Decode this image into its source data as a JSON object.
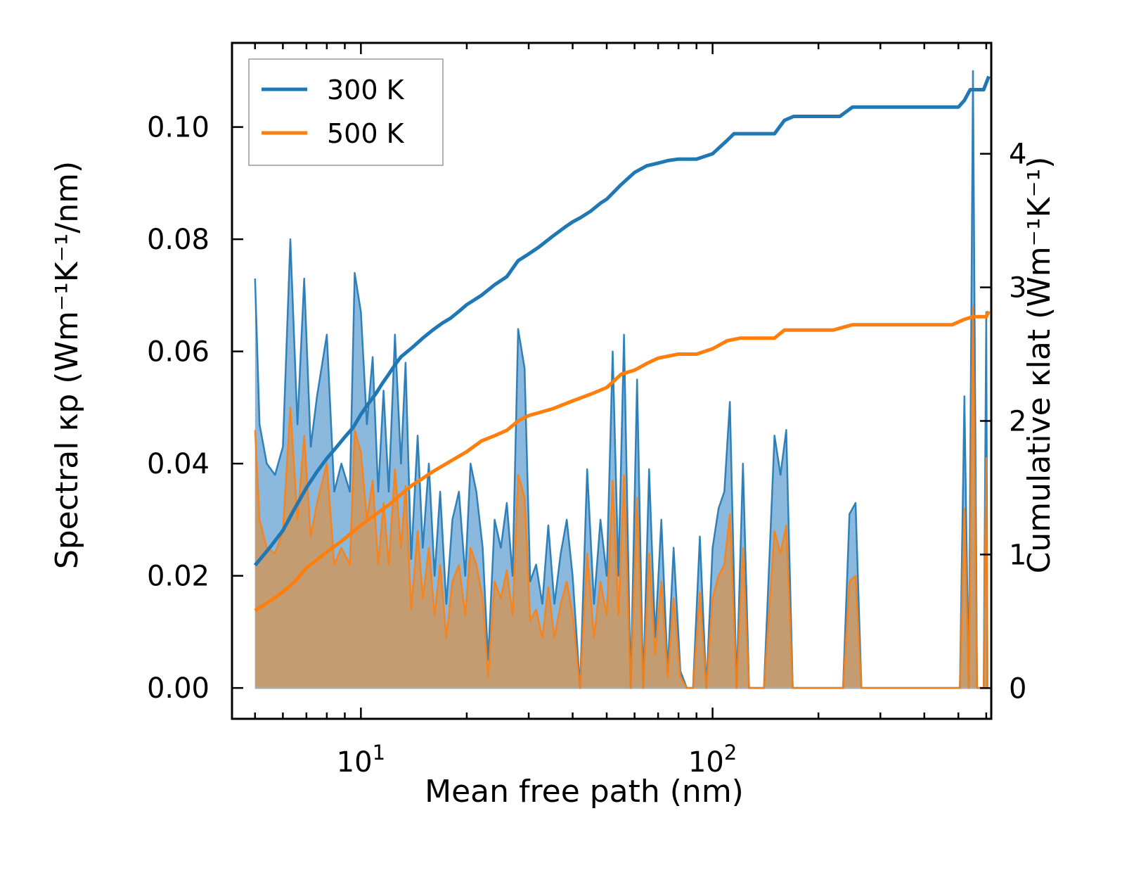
{
  "chart_data": {
    "type": "line",
    "x_scale": "log",
    "xlabel": "Mean free path (nm)",
    "ylabel_left": "Spectral κp (Wm⁻¹K⁻¹/nm)",
    "ylabel_right": "Cumulative κlat (Wm⁻¹K⁻¹)",
    "xlim": [
      4.3,
      620
    ],
    "ylim_left": [
      -0.0055,
      0.115
    ],
    "ylim_right": [
      -0.23,
      4.83
    ],
    "x_ticks": [
      {
        "value": 10,
        "base": "10",
        "exp": "1"
      },
      {
        "value": 100,
        "base": "10",
        "exp": "2"
      }
    ],
    "y_ticks_left": [
      "0.00",
      "0.02",
      "0.04",
      "0.06",
      "0.08",
      "0.10"
    ],
    "y_ticks_right": [
      "0",
      "1",
      "2",
      "3",
      "4"
    ],
    "legend": {
      "position": "top-left",
      "entries": [
        "300 K",
        "500 K"
      ]
    },
    "colors": {
      "300 K": "#1f77b4",
      "500 K": "#ff7f0e",
      "fill_300": "#7eb1d9",
      "fill_500": "#c69a6c"
    },
    "series": [
      {
        "name": "300 K",
        "axis": "left",
        "kind": "spectral",
        "points": [
          [
            5.0,
            0.073
          ],
          [
            5.15,
            0.047
          ],
          [
            5.4,
            0.04
          ],
          [
            5.7,
            0.038
          ],
          [
            6.0,
            0.043
          ],
          [
            6.3,
            0.08
          ],
          [
            6.6,
            0.047
          ],
          [
            6.9,
            0.073
          ],
          [
            7.2,
            0.043
          ],
          [
            7.5,
            0.052
          ],
          [
            8.0,
            0.063
          ],
          [
            8.4,
            0.035
          ],
          [
            8.8,
            0.04
          ],
          [
            9.3,
            0.035
          ],
          [
            9.6,
            0.074
          ],
          [
            10.0,
            0.067
          ],
          [
            10.4,
            0.047
          ],
          [
            10.8,
            0.059
          ],
          [
            11.2,
            0.035
          ],
          [
            11.6,
            0.053
          ],
          [
            12.0,
            0.035
          ],
          [
            12.5,
            0.063
          ],
          [
            13.0,
            0.04
          ],
          [
            13.4,
            0.058
          ],
          [
            13.9,
            0.023
          ],
          [
            14.5,
            0.045
          ],
          [
            15.0,
            0.025
          ],
          [
            15.6,
            0.04
          ],
          [
            16.2,
            0.02
          ],
          [
            16.8,
            0.035
          ],
          [
            17.5,
            0.015
          ],
          [
            18.2,
            0.03
          ],
          [
            19.0,
            0.035
          ],
          [
            19.8,
            0.02
          ],
          [
            20.5,
            0.04
          ],
          [
            21.3,
            0.035
          ],
          [
            22.2,
            0.025
          ],
          [
            23.0,
            0.005
          ],
          [
            24.0,
            0.03
          ],
          [
            25.0,
            0.025
          ],
          [
            26.0,
            0.033
          ],
          [
            27.0,
            0.02
          ],
          [
            28.0,
            0.064
          ],
          [
            29.2,
            0.057
          ],
          [
            30.3,
            0.019
          ],
          [
            31.5,
            0.022
          ],
          [
            32.8,
            0.015
          ],
          [
            34.1,
            0.029
          ],
          [
            35.5,
            0.015
          ],
          [
            37.0,
            0.024
          ],
          [
            38.5,
            0.03
          ],
          [
            40.0,
            0.02
          ],
          [
            42.0,
            0.0
          ],
          [
            44.0,
            0.039
          ],
          [
            46.0,
            0.015
          ],
          [
            48.0,
            0.03
          ],
          [
            50.0,
            0.02
          ],
          [
            52.0,
            0.06
          ],
          [
            54.0,
            0.02
          ],
          [
            56.0,
            0.063
          ],
          [
            58.5,
            0.0
          ],
          [
            61.0,
            0.055
          ],
          [
            63.5,
            0.0
          ],
          [
            66.0,
            0.039
          ],
          [
            68.7,
            0.009
          ],
          [
            71.5,
            0.03
          ],
          [
            74.5,
            0.003
          ],
          [
            77.5,
            0.025
          ],
          [
            81.0,
            0.003
          ],
          [
            84.5,
            0.0
          ],
          [
            88.0,
            0.0
          ],
          [
            92.0,
            0.027
          ],
          [
            96.0,
            0.0
          ],
          [
            100.0,
            0.025
          ],
          [
            104.0,
            0.032
          ],
          [
            108.0,
            0.035
          ],
          [
            112.0,
            0.051
          ],
          [
            117.0,
            0.0
          ],
          [
            122.0,
            0.04
          ],
          [
            127.0,
            0.0
          ],
          [
            140.0,
            0.0
          ],
          [
            150.0,
            0.045
          ],
          [
            156.0,
            0.038
          ],
          [
            162.0,
            0.046
          ],
          [
            169.0,
            0.0
          ],
          [
            235.0,
            0.0
          ],
          [
            245.0,
            0.031
          ],
          [
            255.0,
            0.033
          ],
          [
            265.0,
            0.0
          ],
          [
            505.0,
            0.0
          ],
          [
            520.0,
            0.052
          ],
          [
            535.0,
            0.0
          ],
          [
            550.0,
            0.11
          ],
          [
            565.0,
            0.0
          ],
          [
            590.0,
            0.0
          ],
          [
            600.0,
            0.067
          ],
          [
            605.0,
            0.0
          ]
        ]
      },
      {
        "name": "500 K",
        "axis": "left",
        "kind": "spectral",
        "points": [
          [
            5.0,
            0.046
          ],
          [
            5.15,
            0.03
          ],
          [
            5.4,
            0.025
          ],
          [
            5.7,
            0.024
          ],
          [
            6.0,
            0.028
          ],
          [
            6.3,
            0.05
          ],
          [
            6.6,
            0.03
          ],
          [
            6.9,
            0.045
          ],
          [
            7.2,
            0.027
          ],
          [
            7.5,
            0.033
          ],
          [
            8.0,
            0.04
          ],
          [
            8.4,
            0.022
          ],
          [
            8.8,
            0.025
          ],
          [
            9.3,
            0.022
          ],
          [
            9.6,
            0.046
          ],
          [
            10.0,
            0.042
          ],
          [
            10.4,
            0.03
          ],
          [
            10.8,
            0.037
          ],
          [
            11.2,
            0.022
          ],
          [
            11.6,
            0.033
          ],
          [
            12.0,
            0.022
          ],
          [
            12.5,
            0.039
          ],
          [
            13.0,
            0.025
          ],
          [
            13.4,
            0.036
          ],
          [
            13.9,
            0.014
          ],
          [
            14.5,
            0.028
          ],
          [
            15.0,
            0.016
          ],
          [
            15.6,
            0.025
          ],
          [
            16.2,
            0.013
          ],
          [
            16.8,
            0.022
          ],
          [
            17.5,
            0.009
          ],
          [
            18.2,
            0.019
          ],
          [
            19.0,
            0.022
          ],
          [
            19.8,
            0.013
          ],
          [
            20.5,
            0.025
          ],
          [
            21.3,
            0.022
          ],
          [
            22.2,
            0.016
          ],
          [
            23.0,
            0.002
          ],
          [
            24.0,
            0.019
          ],
          [
            25.0,
            0.016
          ],
          [
            26.0,
            0.021
          ],
          [
            27.0,
            0.013
          ],
          [
            28.0,
            0.038
          ],
          [
            29.2,
            0.034
          ],
          [
            30.3,
            0.012
          ],
          [
            31.5,
            0.014
          ],
          [
            32.8,
            0.009
          ],
          [
            34.1,
            0.018
          ],
          [
            35.5,
            0.009
          ],
          [
            37.0,
            0.015
          ],
          [
            38.5,
            0.019
          ],
          [
            40.0,
            0.013
          ],
          [
            42.0,
            0.0
          ],
          [
            44.0,
            0.024
          ],
          [
            46.0,
            0.009
          ],
          [
            48.0,
            0.019
          ],
          [
            50.0,
            0.013
          ],
          [
            52.0,
            0.037
          ],
          [
            54.0,
            0.013
          ],
          [
            56.0,
            0.038
          ],
          [
            58.5,
            0.0
          ],
          [
            61.0,
            0.034
          ],
          [
            63.5,
            0.0
          ],
          [
            66.0,
            0.024
          ],
          [
            68.7,
            0.006
          ],
          [
            71.5,
            0.019
          ],
          [
            74.5,
            0.002
          ],
          [
            77.5,
            0.016
          ],
          [
            81.0,
            0.002
          ],
          [
            84.5,
            0.0
          ],
          [
            88.0,
            0.0
          ],
          [
            92.0,
            0.017
          ],
          [
            96.0,
            0.0
          ],
          [
            100.0,
            0.016
          ],
          [
            104.0,
            0.02
          ],
          [
            108.0,
            0.022
          ],
          [
            112.0,
            0.031
          ],
          [
            117.0,
            0.0
          ],
          [
            122.0,
            0.025
          ],
          [
            127.0,
            0.0
          ],
          [
            140.0,
            0.0
          ],
          [
            150.0,
            0.028
          ],
          [
            156.0,
            0.024
          ],
          [
            162.0,
            0.029
          ],
          [
            169.0,
            0.0
          ],
          [
            235.0,
            0.0
          ],
          [
            245.0,
            0.019
          ],
          [
            255.0,
            0.02
          ],
          [
            265.0,
            0.0
          ],
          [
            505.0,
            0.0
          ],
          [
            520.0,
            0.032
          ],
          [
            535.0,
            0.0
          ],
          [
            550.0,
            0.068
          ],
          [
            565.0,
            0.0
          ],
          [
            590.0,
            0.0
          ],
          [
            600.0,
            0.041
          ],
          [
            605.0,
            0.0
          ]
        ]
      },
      {
        "name": "300 K",
        "axis": "right",
        "kind": "cumulative",
        "points": [
          [
            5.0,
            0.92
          ],
          [
            5.5,
            1.05
          ],
          [
            6.0,
            1.18
          ],
          [
            6.5,
            1.35
          ],
          [
            7.0,
            1.5
          ],
          [
            7.5,
            1.62
          ],
          [
            8.0,
            1.72
          ],
          [
            8.5,
            1.8
          ],
          [
            9.0,
            1.88
          ],
          [
            9.5,
            1.95
          ],
          [
            10.0,
            2.05
          ],
          [
            10.5,
            2.13
          ],
          [
            11.0,
            2.2
          ],
          [
            11.5,
            2.28
          ],
          [
            12.0,
            2.35
          ],
          [
            12.5,
            2.42
          ],
          [
            13.0,
            2.48
          ],
          [
            14.0,
            2.55
          ],
          [
            15.0,
            2.62
          ],
          [
            16.0,
            2.68
          ],
          [
            17.0,
            2.73
          ],
          [
            18.0,
            2.77
          ],
          [
            19.0,
            2.82
          ],
          [
            20.0,
            2.87
          ],
          [
            22.0,
            2.94
          ],
          [
            24.0,
            3.02
          ],
          [
            26.0,
            3.08
          ],
          [
            28.0,
            3.2
          ],
          [
            30.0,
            3.25
          ],
          [
            32.0,
            3.3
          ],
          [
            35.0,
            3.38
          ],
          [
            38.0,
            3.45
          ],
          [
            40.0,
            3.49
          ],
          [
            42.0,
            3.52
          ],
          [
            45.0,
            3.57
          ],
          [
            48.0,
            3.63
          ],
          [
            50.0,
            3.66
          ],
          [
            55.0,
            3.77
          ],
          [
            60.0,
            3.86
          ],
          [
            65.0,
            3.91
          ],
          [
            70.0,
            3.93
          ],
          [
            75.0,
            3.95
          ],
          [
            80.0,
            3.96
          ],
          [
            90.0,
            3.96
          ],
          [
            100.0,
            4.0
          ],
          [
            110.0,
            4.1
          ],
          [
            115.0,
            4.15
          ],
          [
            150.0,
            4.15
          ],
          [
            160.0,
            4.25
          ],
          [
            170.0,
            4.28
          ],
          [
            230.0,
            4.28
          ],
          [
            250.0,
            4.35
          ],
          [
            300.0,
            4.35
          ],
          [
            500.0,
            4.35
          ],
          [
            520.0,
            4.4
          ],
          [
            540.0,
            4.48
          ],
          [
            590.0,
            4.48
          ],
          [
            610.0,
            4.58
          ]
        ]
      },
      {
        "name": "500 K",
        "axis": "right",
        "kind": "cumulative",
        "points": [
          [
            5.0,
            0.58
          ],
          [
            5.5,
            0.65
          ],
          [
            6.0,
            0.72
          ],
          [
            6.5,
            0.8
          ],
          [
            7.0,
            0.9
          ],
          [
            7.5,
            0.96
          ],
          [
            8.0,
            1.02
          ],
          [
            8.5,
            1.07
          ],
          [
            9.0,
            1.12
          ],
          [
            10.0,
            1.22
          ],
          [
            11.0,
            1.3
          ],
          [
            12.0,
            1.37
          ],
          [
            13.0,
            1.45
          ],
          [
            14.0,
            1.52
          ],
          [
            15.0,
            1.57
          ],
          [
            16.0,
            1.62
          ],
          [
            18.0,
            1.7
          ],
          [
            20.0,
            1.77
          ],
          [
            22.0,
            1.85
          ],
          [
            24.0,
            1.89
          ],
          [
            26.0,
            1.93
          ],
          [
            28.0,
            2.0
          ],
          [
            30.0,
            2.04
          ],
          [
            35.0,
            2.09
          ],
          [
            40.0,
            2.15
          ],
          [
            45.0,
            2.2
          ],
          [
            50.0,
            2.25
          ],
          [
            55.0,
            2.35
          ],
          [
            60.0,
            2.38
          ],
          [
            65.0,
            2.43
          ],
          [
            70.0,
            2.47
          ],
          [
            80.0,
            2.5
          ],
          [
            90.0,
            2.5
          ],
          [
            100.0,
            2.54
          ],
          [
            110.0,
            2.6
          ],
          [
            120.0,
            2.62
          ],
          [
            150.0,
            2.62
          ],
          [
            160.0,
            2.68
          ],
          [
            220.0,
            2.68
          ],
          [
            250.0,
            2.72
          ],
          [
            300.0,
            2.72
          ],
          [
            480.0,
            2.72
          ],
          [
            520.0,
            2.76
          ],
          [
            550.0,
            2.78
          ],
          [
            600.0,
            2.78
          ],
          [
            610.0,
            2.82
          ]
        ]
      }
    ]
  }
}
